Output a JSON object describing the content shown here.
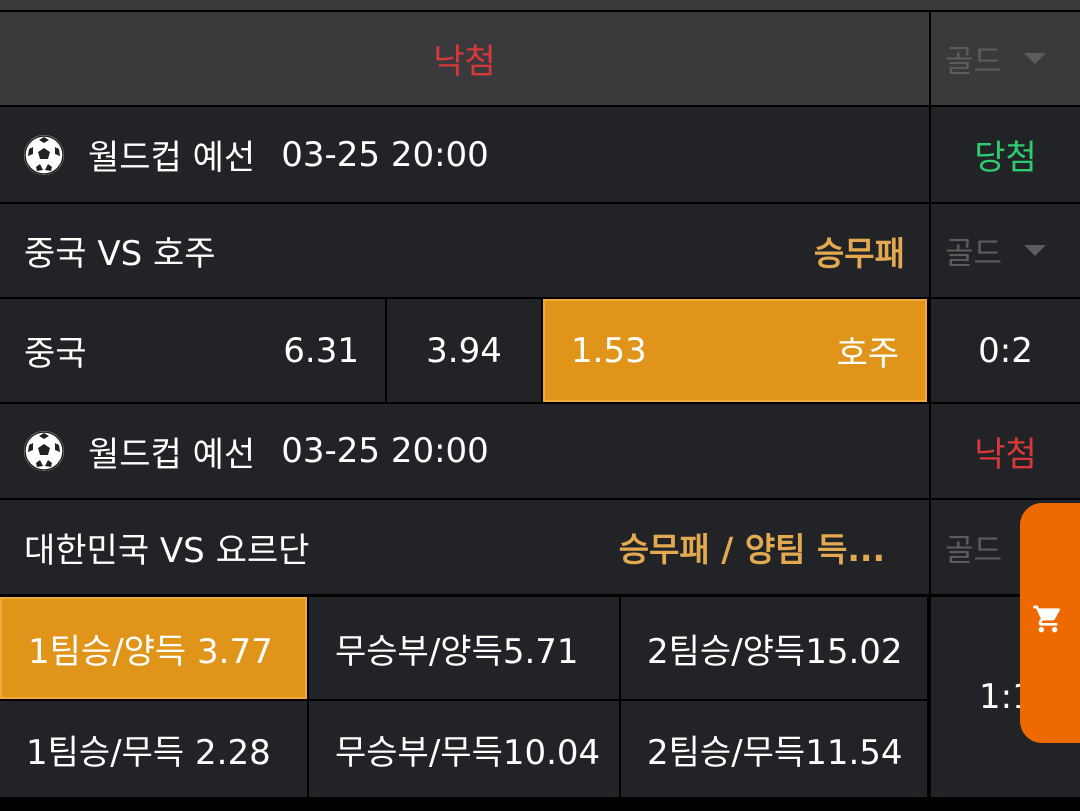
{
  "top": {
    "status": "낙첨",
    "gold_label": "골드"
  },
  "matches": [
    {
      "league": "월드컵 예선",
      "time": "03-25 20:00",
      "result": "당첨",
      "teams": "중국 VS 호주",
      "market": "승무패",
      "gold_label": "골드",
      "odds": {
        "home": "중국",
        "home_odd": "6.31",
        "draw_odd": "3.94",
        "away_odd": "1.53",
        "away": "호주"
      },
      "score": "0:2"
    },
    {
      "league": "월드컵 예선",
      "time": "03-25 20:00",
      "result": "낙첨",
      "teams": "대한민국 VS 요르단",
      "market": "승무패 / 양팀 득...",
      "gold_label": "골드",
      "options": [
        [
          "1팀승/양득 3.77",
          "무승부/양득5.71",
          "2팀승/양득15.02"
        ],
        [
          "1팀승/무득 2.28",
          "무승부/무득10.04",
          "2팀승/무득11.54"
        ]
      ],
      "score": "1:1"
    }
  ],
  "colors": {
    "lose": "#d8383a",
    "win": "#2ecc71",
    "accent": "#e0941a",
    "cart": "#ee6a00"
  },
  "cart_icon": "shopping-cart-icon"
}
